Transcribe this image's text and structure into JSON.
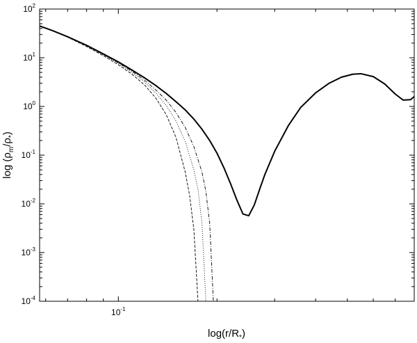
{
  "chart_data": {
    "type": "line",
    "title": "",
    "xlabel": {
      "prefix": "log(r/R",
      "sub": "*",
      "suffix": ")"
    },
    "ylabel": {
      "prefix": "log (ρ",
      "sub1": "m",
      "mid": "/ρ",
      "sub2": "*",
      "suffix": ")"
    },
    "x_scale": "log",
    "y_scale": "log",
    "xlim": [
      0.0575,
      0.8
    ],
    "ylim": [
      0.0001,
      100
    ],
    "x_major_ticks": [
      {
        "value": 0.1,
        "base": "10",
        "exp": "-1"
      }
    ],
    "y_major_ticks": [
      {
        "value": 100,
        "base": "10",
        "exp": "2"
      },
      {
        "value": 10,
        "base": "10",
        "exp": "1"
      },
      {
        "value": 1,
        "base": "10",
        "exp": "0"
      },
      {
        "value": 0.1,
        "base": "10",
        "exp": "-1"
      },
      {
        "value": 0.01,
        "base": "10",
        "exp": "-2"
      },
      {
        "value": 0.001,
        "base": "10",
        "exp": "-3"
      },
      {
        "value": 0.0001,
        "base": "10",
        "exp": "-4"
      }
    ],
    "grid": false,
    "legend": "none",
    "series": [
      {
        "style": "solid",
        "x": [
          0.0575,
          0.063,
          0.07,
          0.08,
          0.09,
          0.1,
          0.11,
          0.12,
          0.13,
          0.14,
          0.15,
          0.16,
          0.17,
          0.18,
          0.19,
          0.2,
          0.21,
          0.22,
          0.23,
          0.24,
          0.25,
          0.26,
          0.27,
          0.28,
          0.3,
          0.33,
          0.36,
          0.4,
          0.44,
          0.48,
          0.52,
          0.55,
          0.6,
          0.65,
          0.7,
          0.74,
          0.78,
          0.8
        ],
        "y": [
          45,
          36,
          27,
          18,
          12,
          8.2,
          5.6,
          3.9,
          2.7,
          1.85,
          1.25,
          0.85,
          0.55,
          0.34,
          0.2,
          0.11,
          0.055,
          0.026,
          0.012,
          0.0062,
          0.0057,
          0.0095,
          0.02,
          0.04,
          0.12,
          0.4,
          0.95,
          1.9,
          3.0,
          4.0,
          4.6,
          4.7,
          4.1,
          2.9,
          1.8,
          1.35,
          1.38,
          1.6
        ]
      },
      {
        "style": "dashed",
        "x": [
          0.0575,
          0.063,
          0.07,
          0.08,
          0.09,
          0.1,
          0.11,
          0.12,
          0.13,
          0.14,
          0.15,
          0.16,
          0.165,
          0.17,
          0.175
        ],
        "y": [
          45,
          36,
          26.5,
          17,
          11,
          7.2,
          4.6,
          2.8,
          1.5,
          0.68,
          0.23,
          0.045,
          0.015,
          0.003,
          0.0001
        ]
      },
      {
        "style": "dotted",
        "x": [
          0.0575,
          0.063,
          0.07,
          0.08,
          0.09,
          0.1,
          0.11,
          0.12,
          0.13,
          0.14,
          0.15,
          0.16,
          0.17,
          0.175,
          0.18,
          0.185
        ],
        "y": [
          45,
          36,
          26.7,
          17.3,
          11.4,
          7.6,
          5.0,
          3.2,
          1.9,
          1.05,
          0.5,
          0.19,
          0.05,
          0.02,
          0.004,
          0.0001
        ]
      },
      {
        "style": "dashdot",
        "x": [
          0.0575,
          0.063,
          0.07,
          0.08,
          0.09,
          0.1,
          0.11,
          0.12,
          0.13,
          0.14,
          0.15,
          0.16,
          0.17,
          0.18,
          0.185,
          0.19,
          0.195
        ],
        "y": [
          45,
          36,
          26.8,
          17.6,
          11.7,
          7.9,
          5.3,
          3.5,
          2.2,
          1.35,
          0.75,
          0.37,
          0.15,
          0.045,
          0.018,
          0.004,
          0.0001
        ]
      }
    ]
  }
}
